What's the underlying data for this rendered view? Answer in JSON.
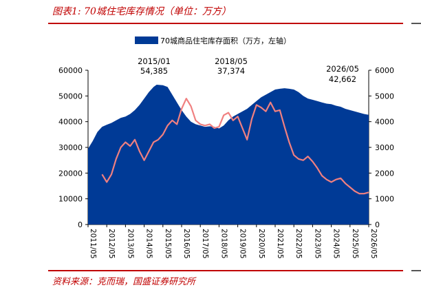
{
  "caption": "图表1: 70城住宅库存情况（单位：万方）",
  "source": "资料来源：克而瑞，国盛证券研究所",
  "chart_data": {
    "type": "area",
    "title": "",
    "legend": {
      "entries": [
        "70城商品住宅库存面积（万方，左轴）"
      ],
      "placement": "top-center"
    },
    "x_tick_labels": [
      "2011/05",
      "2012/05",
      "2013/05",
      "2014/05",
      "2015/05",
      "2016/05",
      "2017/05",
      "2018/05",
      "2019/05",
      "2020/05",
      "2021/05",
      "2022/05",
      "2023/05",
      "2024/05",
      "2025/05",
      "2026/05"
    ],
    "y_left": {
      "lim": [
        0,
        60000
      ],
      "ticks": [
        "0",
        "10000",
        "20000",
        "30000",
        "40000",
        "50000",
        "60000"
      ]
    },
    "y_right": {
      "lim": [
        0,
        6000
      ],
      "ticks": [
        "0",
        "1000",
        "2000",
        "3000",
        "4000",
        "5000",
        "6000"
      ]
    },
    "annotations": [
      {
        "date": "2015/01",
        "value": "54,385",
        "text_date": "2015/01",
        "text_value": "54,385"
      },
      {
        "date": "2018/05",
        "value": "37,374",
        "text_date": "2018/05",
        "text_value": "37,374"
      },
      {
        "date": "2026/05",
        "value": "42,662",
        "text_date": "2026/05",
        "text_value": "42,662"
      }
    ],
    "series": [
      {
        "name": "70城商品住宅库存面积（万方，左轴）",
        "axis": "left",
        "color": "#003a96",
        "points": [
          [
            "2011-05",
            29500
          ],
          [
            "2011-08",
            32500
          ],
          [
            "2011-11",
            36000
          ],
          [
            "2012-02",
            38000
          ],
          [
            "2012-05",
            38800
          ],
          [
            "2012-08",
            39500
          ],
          [
            "2012-11",
            40500
          ],
          [
            "2013-02",
            41500
          ],
          [
            "2013-05",
            42000
          ],
          [
            "2013-08",
            43000
          ],
          [
            "2013-11",
            44500
          ],
          [
            "2014-02",
            46500
          ],
          [
            "2014-05",
            49000
          ],
          [
            "2014-08",
            51500
          ],
          [
            "2014-11",
            53500
          ],
          [
            "2015-01",
            54385
          ],
          [
            "2015-05",
            54200
          ],
          [
            "2015-08",
            53500
          ],
          [
            "2015-11",
            50500
          ],
          [
            "2016-02",
            47500
          ],
          [
            "2016-05",
            44500
          ],
          [
            "2016-08",
            42000
          ],
          [
            "2016-11",
            40000
          ],
          [
            "2017-02",
            39000
          ],
          [
            "2017-05",
            38500
          ],
          [
            "2017-08",
            38000
          ],
          [
            "2017-11",
            38200
          ],
          [
            "2018-02",
            38000
          ],
          [
            "2018-05",
            37374
          ],
          [
            "2018-08",
            38500
          ],
          [
            "2018-11",
            40500
          ],
          [
            "2019-02",
            42000
          ],
          [
            "2019-05",
            43000
          ],
          [
            "2019-08",
            44000
          ],
          [
            "2019-11",
            45000
          ],
          [
            "2020-02",
            46500
          ],
          [
            "2020-05",
            48000
          ],
          [
            "2020-08",
            49500
          ],
          [
            "2020-11",
            50500
          ],
          [
            "2021-02",
            51500
          ],
          [
            "2021-05",
            52500
          ],
          [
            "2021-08",
            52800
          ],
          [
            "2021-11",
            53000
          ],
          [
            "2022-02",
            52800
          ],
          [
            "2022-05",
            52500
          ],
          [
            "2022-08",
            51500
          ],
          [
            "2022-11",
            50000
          ],
          [
            "2023-02",
            49000
          ],
          [
            "2023-05",
            48500
          ],
          [
            "2023-08",
            48000
          ],
          [
            "2023-11",
            47500
          ],
          [
            "2024-02",
            47000
          ],
          [
            "2024-05",
            46800
          ],
          [
            "2024-08",
            46200
          ],
          [
            "2024-11",
            45800
          ],
          [
            "2025-02",
            45000
          ],
          [
            "2025-05",
            44500
          ],
          [
            "2025-08",
            44000
          ],
          [
            "2025-11",
            43500
          ],
          [
            "2026-02",
            43000
          ],
          [
            "2026-05",
            42662
          ]
        ]
      },
      {
        "name": "",
        "axis": "right",
        "color": "#f08080",
        "points": [
          [
            "2012-02",
            1950
          ],
          [
            "2012-05",
            1650
          ],
          [
            "2012-08",
            1950
          ],
          [
            "2012-11",
            2550
          ],
          [
            "2013-02",
            3000
          ],
          [
            "2013-05",
            3200
          ],
          [
            "2013-08",
            3050
          ],
          [
            "2013-11",
            3300
          ],
          [
            "2014-02",
            2850
          ],
          [
            "2014-05",
            2500
          ],
          [
            "2014-08",
            2850
          ],
          [
            "2014-11",
            3200
          ],
          [
            "2015-02",
            3300
          ],
          [
            "2015-05",
            3500
          ],
          [
            "2015-08",
            3850
          ],
          [
            "2015-11",
            4050
          ],
          [
            "2016-02",
            3900
          ],
          [
            "2016-05",
            4500
          ],
          [
            "2016-08",
            4900
          ],
          [
            "2016-11",
            4600
          ],
          [
            "2017-02",
            4050
          ],
          [
            "2017-05",
            3900
          ],
          [
            "2017-08",
            3850
          ],
          [
            "2017-11",
            3900
          ],
          [
            "2018-02",
            3750
          ],
          [
            "2018-05",
            3800
          ],
          [
            "2018-08",
            4250
          ],
          [
            "2018-11",
            4350
          ],
          [
            "2019-02",
            4050
          ],
          [
            "2019-05",
            4200
          ],
          [
            "2019-08",
            3750
          ],
          [
            "2019-11",
            3300
          ],
          [
            "2020-02",
            4100
          ],
          [
            "2020-05",
            4650
          ],
          [
            "2020-08",
            4550
          ],
          [
            "2020-11",
            4400
          ],
          [
            "2021-02",
            4750
          ],
          [
            "2021-05",
            4400
          ],
          [
            "2021-08",
            4450
          ],
          [
            "2021-11",
            3800
          ],
          [
            "2022-02",
            3200
          ],
          [
            "2022-05",
            2700
          ],
          [
            "2022-08",
            2550
          ],
          [
            "2022-11",
            2500
          ],
          [
            "2023-02",
            2650
          ],
          [
            "2023-05",
            2450
          ],
          [
            "2023-08",
            2200
          ],
          [
            "2023-11",
            1900
          ],
          [
            "2024-02",
            1750
          ],
          [
            "2024-05",
            1650
          ],
          [
            "2024-08",
            1750
          ],
          [
            "2024-11",
            1800
          ],
          [
            "2025-02",
            1600
          ],
          [
            "2025-05",
            1450
          ],
          [
            "2025-08",
            1300
          ],
          [
            "2025-11",
            1200
          ],
          [
            "2026-02",
            1200
          ],
          [
            "2026-05",
            1250
          ]
        ]
      }
    ]
  }
}
